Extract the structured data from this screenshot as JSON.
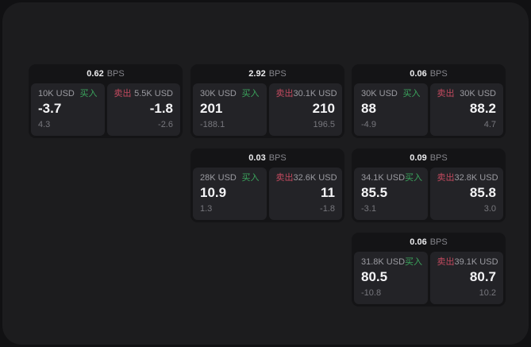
{
  "colors": {
    "page_bg": "#111113",
    "window_bg": "#1c1c1e",
    "card_bg": "#141416",
    "panel_bg": "#232327",
    "buy_green": "#3ba55d",
    "sell_red": "#c34a5f",
    "primary_text": "#f4f4f6",
    "secondary_text": "#9b9ba1",
    "muted_text": "#77777d"
  },
  "labels": {
    "bps_unit": "BPS",
    "buy_label": "买入",
    "sell_label": "卖出"
  },
  "cards": [
    {
      "bps": "0.62",
      "col": 0,
      "row": 0,
      "buy": {
        "size": "10K USD",
        "price": "-3.7",
        "delta": "4.3"
      },
      "sell": {
        "size": "5.5K USD",
        "price": "-1.8",
        "delta": "-2.6"
      }
    },
    {
      "bps": "2.92",
      "col": 1,
      "row": 0,
      "buy": {
        "size": "30K USD",
        "price": "201",
        "delta": "-188.1"
      },
      "sell": {
        "size": "30.1K USD",
        "price": "210",
        "delta": "196.5"
      }
    },
    {
      "bps": "0.06",
      "col": 2,
      "row": 0,
      "buy": {
        "size": "30K USD",
        "price": "88",
        "delta": "-4.9"
      },
      "sell": {
        "size": "30K USD",
        "price": "88.2",
        "delta": "4.7"
      }
    },
    {
      "bps": "0.03",
      "col": 1,
      "row": 1,
      "buy": {
        "size": "28K USD",
        "price": "10.9",
        "delta": "1.3"
      },
      "sell": {
        "size": "32.6K USD",
        "price": "11",
        "delta": "-1.8"
      }
    },
    {
      "bps": "0.09",
      "col": 2,
      "row": 1,
      "buy": {
        "size": "34.1K USD",
        "price": "85.5",
        "delta": "-3.1"
      },
      "sell": {
        "size": "32.8K USD",
        "price": "85.8",
        "delta": "3.0"
      }
    },
    {
      "bps": "0.06",
      "col": 2,
      "row": 2,
      "buy": {
        "size": "31.8K USD",
        "price": "80.5",
        "delta": "-10.8"
      },
      "sell": {
        "size": "39.1K USD",
        "price": "80.7",
        "delta": "10.2"
      }
    }
  ]
}
